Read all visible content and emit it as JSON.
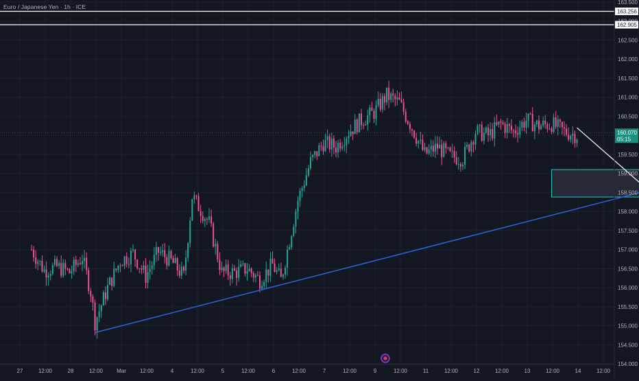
{
  "title": "Euro / Japanese Yen · 1h · ICE",
  "colors": {
    "background": "#131722",
    "grid": "#1e222d",
    "up": "#26a69a",
    "down": "#ef5391",
    "trendline": "#2f63e0",
    "zone_border": "#2ec4c4",
    "zone_fill": "#2a2e3b",
    "projection": "#ffffff",
    "current_price_badge": "#1b8f7f",
    "axis_text": "#b2b5be"
  },
  "chart_data": {
    "type": "candlestick",
    "symbol": "EURJPY",
    "timeframe": "1h",
    "ylim": [
      154.0,
      163.5
    ],
    "y_ticks": [
      "154.000",
      "154.500",
      "155.000",
      "155.500",
      "156.000",
      "156.500",
      "157.000",
      "157.500",
      "158.000",
      "158.500",
      "159.000",
      "159.500",
      "160.000",
      "160.500",
      "161.000",
      "161.500",
      "162.000",
      "162.500",
      "163.000",
      "163.500"
    ],
    "x_ticks": [
      "27",
      "12:00",
      "28",
      "12:00",
      "Mar",
      "12:00",
      "4",
      "12:00",
      "5",
      "12:00",
      "6",
      "12:00",
      "7",
      "12:00",
      "9",
      "12:00",
      "11",
      "12:00",
      "12",
      "12:00",
      "13",
      "12:00",
      "14",
      "12:00"
    ],
    "horizontal_levels": [
      {
        "label": "163.256",
        "value": 163.256
      },
      {
        "label": "162.905",
        "value": 162.905
      }
    ],
    "current_price": {
      "label": "160.070",
      "value": 160.07,
      "countdown": "05:15"
    },
    "trendline": {
      "start": {
        "date": "Feb 28 00:00",
        "price": 154.82
      },
      "end": {
        "date": "Mar 12 12:00",
        "price": 159.1
      }
    },
    "demand_zone": {
      "from_date": "Mar 9 00:00",
      "to_date": "Mar 12 12:00",
      "top": 159.1,
      "bottom": 158.38
    },
    "projection_path": [
      {
        "date": "Mar 9 12:00",
        "price": 160.2
      },
      {
        "date": "Mar 11 00:00",
        "price": 158.45
      },
      {
        "date": "Mar 12 12:00",
        "price": 161.6
      }
    ],
    "price_path": [
      [
        "Feb 26 18:00",
        157.0
      ],
      [
        "Feb 27 00:00",
        156.45
      ],
      [
        "Feb 27 06:00",
        156.55
      ],
      [
        "Feb 27 12:00",
        156.4
      ],
      [
        "Feb 27 18:00",
        156.8
      ],
      [
        "Feb 27 22:00",
        155.9
      ],
      [
        "Feb 28 00:00",
        155.1
      ],
      [
        "Feb 28 06:00",
        156.0
      ],
      [
        "Feb 28 12:00",
        156.7
      ],
      [
        "Feb 28 18:00",
        156.9
      ],
      [
        "Mar 1 00:00",
        156.3
      ],
      [
        "Mar 1 06:00",
        156.95
      ],
      [
        "Mar 1 12:00",
        156.7
      ],
      [
        "Mar 1 18:00",
        156.3
      ],
      [
        "Mar 1 22:00",
        158.4
      ],
      [
        "Mar 2 06:00",
        157.7
      ],
      [
        "Mar 2 12:00",
        156.4
      ],
      [
        "Mar 2 18:00",
        156.4
      ],
      [
        "Mar 3 00:00",
        156.5
      ],
      [
        "Mar 3 06:00",
        156.2
      ],
      [
        "Mar 3 12:00",
        156.6
      ],
      [
        "Mar 3 16:00",
        156.2
      ],
      [
        "Mar 4 00:00",
        158.3
      ],
      [
        "Mar 4 06:00",
        159.3
      ],
      [
        "Mar 4 12:00",
        159.8
      ],
      [
        "Mar 4 18:00",
        159.7
      ],
      [
        "Mar 5 00:00",
        160.1
      ],
      [
        "Mar 5 06:00",
        160.4
      ],
      [
        "Mar 5 12:00",
        160.6
      ],
      [
        "Mar 5 18:00",
        161.05
      ],
      [
        "Mar 6 00:00",
        160.85
      ],
      [
        "Mar 6 06:00",
        160.2
      ],
      [
        "Mar 6 12:00",
        159.5
      ],
      [
        "Mar 6 18:00",
        159.7
      ],
      [
        "Mar 7 00:00",
        159.45
      ],
      [
        "Mar 7 06:00",
        159.4
      ],
      [
        "Mar 7 12:00",
        160.1
      ],
      [
        "Mar 7 18:00",
        160.0
      ],
      [
        "Mar 8 00:00",
        160.3
      ],
      [
        "Mar 8 06:00",
        160.1
      ],
      [
        "Mar 8 12:00",
        160.4
      ],
      [
        "Mar 8 18:00",
        160.25
      ],
      [
        "Mar 9 00:00",
        160.3
      ],
      [
        "Mar 9 06:00",
        160.1
      ],
      [
        "Mar 9 12:00",
        160.0
      ]
    ]
  }
}
